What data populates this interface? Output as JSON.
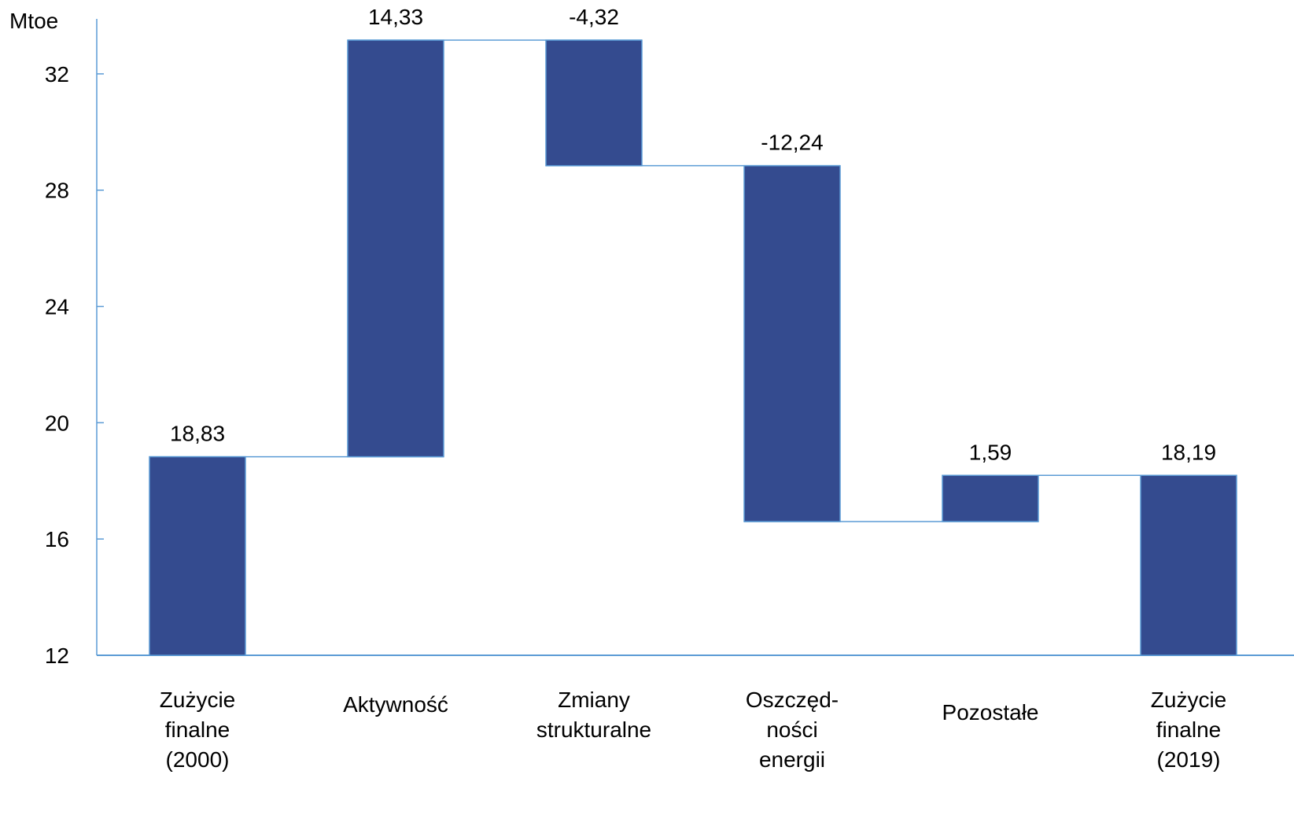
{
  "chart_data": {
    "type": "waterfall",
    "unit_label": "Mtoe",
    "ylim": [
      12,
      34
    ],
    "y_ticks": [
      12,
      16,
      20,
      24,
      28,
      32
    ],
    "grid": false,
    "colors": {
      "bar": "#344b8f",
      "axis": "#5b9bd5",
      "connector": "#5b9bd5"
    },
    "steps": [
      {
        "label": [
          "Zużycie",
          "finalne",
          " (2000)"
        ],
        "kind": "total",
        "value": 18.83,
        "value_label": "18,83"
      },
      {
        "label": [
          "Aktywność"
        ],
        "kind": "delta",
        "value": 14.33,
        "value_label": "14,33"
      },
      {
        "label": [
          "Zmiany",
          "strukturalne"
        ],
        "kind": "delta",
        "value": -4.32,
        "value_label": "-4,32"
      },
      {
        "label": [
          "Oszczęd-",
          "ności",
          "energii"
        ],
        "kind": "delta",
        "value": -12.24,
        "value_label": "-12,24"
      },
      {
        "label": [
          "Pozostałe"
        ],
        "kind": "delta",
        "value": 1.59,
        "value_label": "1,59"
      },
      {
        "label": [
          "Zużycie",
          "finalne",
          " (2019)"
        ],
        "kind": "total",
        "value": 18.19,
        "value_label": "18,19"
      }
    ]
  }
}
